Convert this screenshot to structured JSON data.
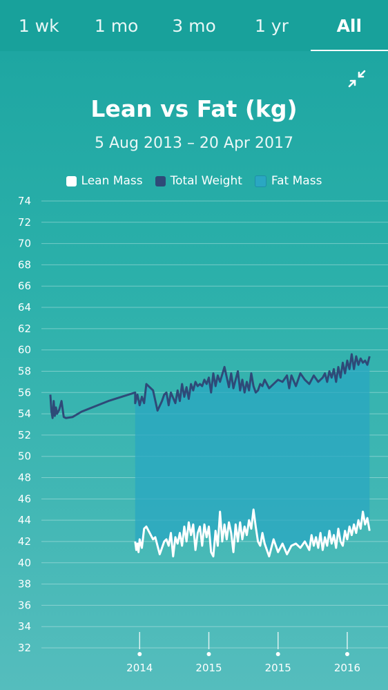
{
  "tabs": [
    {
      "label": "1 wk",
      "active": false
    },
    {
      "label": "1 mo",
      "active": false
    },
    {
      "label": "3 mo",
      "active": false
    },
    {
      "label": "1 yr",
      "active": false
    },
    {
      "label": "All",
      "active": true
    }
  ],
  "icons": {
    "collapse": "collapse-arrows-icon"
  },
  "chart_data": {
    "type": "line",
    "title": "Lean vs Fat (kg)",
    "subtitle": "5 Aug 2013 – 20 Apr 2017",
    "legend": [
      {
        "name": "Lean Mass",
        "color": "#ffffff"
      },
      {
        "name": "Total Weight",
        "color": "#2e4a78"
      },
      {
        "name": "Fat Mass",
        "color": "#2aa7c2"
      }
    ],
    "legend_position": "top-center",
    "grid": true,
    "ylim": [
      32,
      74
    ],
    "yticks": [
      74,
      72,
      70,
      68,
      66,
      64,
      62,
      60,
      58,
      56,
      54,
      52,
      50,
      48,
      46,
      44,
      42,
      40,
      38,
      36,
      34,
      32
    ],
    "x_ticks": [
      {
        "label": "2014",
        "pos": 0.14
      },
      {
        "label": "2015",
        "pos": 0.45
      },
      {
        "label": "2015",
        "pos": 0.76
      },
      {
        "label": "2016",
        "pos": 1.07
      }
    ],
    "xlim": [
      -0.3,
      1.2
    ],
    "series": [
      {
        "name": "Total Weight",
        "color": "#2e4a78",
        "x": [
          -0.26,
          -0.255,
          -0.25,
          -0.245,
          -0.24,
          -0.235,
          -0.23,
          -0.22,
          -0.21,
          -0.2,
          -0.19,
          -0.16,
          -0.12,
          0.0,
          0.12,
          0.12,
          0.13,
          0.14,
          0.15,
          0.16,
          0.17,
          0.18,
          0.19,
          0.2,
          0.22,
          0.24,
          0.25,
          0.26,
          0.27,
          0.28,
          0.3,
          0.31,
          0.32,
          0.33,
          0.34,
          0.35,
          0.36,
          0.37,
          0.38,
          0.39,
          0.4,
          0.41,
          0.42,
          0.43,
          0.44,
          0.45,
          0.46,
          0.47,
          0.48,
          0.49,
          0.5,
          0.52,
          0.54,
          0.55,
          0.56,
          0.57,
          0.58,
          0.59,
          0.6,
          0.61,
          0.62,
          0.63,
          0.64,
          0.65,
          0.66,
          0.67,
          0.68,
          0.69,
          0.7,
          0.72,
          0.74,
          0.76,
          0.78,
          0.8,
          0.81,
          0.82,
          0.84,
          0.86,
          0.88,
          0.9,
          0.92,
          0.94,
          0.96,
          0.97,
          0.98,
          0.99,
          1.0,
          1.01,
          1.02,
          1.03,
          1.04,
          1.05,
          1.06,
          1.07,
          1.08,
          1.09,
          1.1,
          1.11,
          1.12,
          1.13,
          1.14,
          1.15,
          1.16,
          1.17
        ],
        "values": [
          55.8,
          54.2,
          53.6,
          55.2,
          53.8,
          54.6,
          54.0,
          54.4,
          55.2,
          53.7,
          53.6,
          53.7,
          54.2,
          55.2,
          56.0,
          55.0,
          55.8,
          54.8,
          55.6,
          55.0,
          56.8,
          56.6,
          56.4,
          56.2,
          54.3,
          55.2,
          55.8,
          56.0,
          54.8,
          56.0,
          55.0,
          56.2,
          55.2,
          56.8,
          55.6,
          56.5,
          55.4,
          56.8,
          56.2,
          57.0,
          56.6,
          56.8,
          56.6,
          57.2,
          56.8,
          57.4,
          56.0,
          57.8,
          56.6,
          57.6,
          57.0,
          58.4,
          56.5,
          57.8,
          56.4,
          57.2,
          58.0,
          56.2,
          57.2,
          56.0,
          57.0,
          56.2,
          57.8,
          56.6,
          56.0,
          56.2,
          56.8,
          56.6,
          57.2,
          56.4,
          56.8,
          57.2,
          57.0,
          57.6,
          56.4,
          57.6,
          56.6,
          57.8,
          57.2,
          56.8,
          57.6,
          57.0,
          57.4,
          57.8,
          57.0,
          58.0,
          57.4,
          58.2,
          57.0,
          58.4,
          57.4,
          58.8,
          57.8,
          59.0,
          58.2,
          59.6,
          58.2,
          59.4,
          58.6,
          59.2,
          58.8,
          59.0,
          58.6,
          59.4
        ],
        "label_text": ""
      },
      {
        "name": "Lean Mass",
        "color": "#ffffff",
        "x": [
          0.12,
          0.125,
          0.13,
          0.135,
          0.14,
          0.15,
          0.16,
          0.17,
          0.18,
          0.19,
          0.2,
          0.21,
          0.22,
          0.23,
          0.24,
          0.25,
          0.26,
          0.27,
          0.28,
          0.29,
          0.3,
          0.31,
          0.32,
          0.33,
          0.34,
          0.35,
          0.36,
          0.37,
          0.38,
          0.39,
          0.4,
          0.41,
          0.42,
          0.43,
          0.44,
          0.45,
          0.46,
          0.47,
          0.48,
          0.49,
          0.5,
          0.51,
          0.52,
          0.53,
          0.54,
          0.55,
          0.56,
          0.57,
          0.58,
          0.59,
          0.6,
          0.61,
          0.62,
          0.63,
          0.64,
          0.65,
          0.66,
          0.67,
          0.68,
          0.69,
          0.7,
          0.72,
          0.74,
          0.76,
          0.78,
          0.8,
          0.82,
          0.84,
          0.86,
          0.88,
          0.9,
          0.91,
          0.92,
          0.93,
          0.94,
          0.95,
          0.96,
          0.97,
          0.98,
          0.99,
          1.0,
          1.01,
          1.02,
          1.03,
          1.04,
          1.05,
          1.06,
          1.07,
          1.08,
          1.09,
          1.1,
          1.11,
          1.12,
          1.13,
          1.14,
          1.15,
          1.16,
          1.17
        ],
        "values": [
          42.0,
          41.2,
          41.8,
          41.0,
          42.2,
          41.4,
          43.2,
          43.4,
          43.0,
          42.6,
          42.2,
          42.4,
          41.6,
          40.8,
          41.4,
          42.0,
          42.2,
          41.6,
          42.8,
          40.6,
          42.4,
          41.8,
          42.8,
          41.6,
          43.4,
          42.0,
          43.8,
          42.6,
          43.6,
          41.2,
          42.8,
          43.4,
          41.6,
          43.6,
          42.4,
          43.4,
          41.0,
          40.6,
          43.0,
          41.6,
          44.8,
          42.0,
          43.6,
          42.2,
          43.8,
          42.8,
          41.0,
          43.6,
          42.0,
          43.8,
          42.2,
          43.4,
          42.6,
          44.0,
          43.2,
          45.0,
          43.4,
          42.0,
          41.6,
          42.8,
          41.8,
          40.6,
          42.2,
          41.0,
          41.8,
          40.8,
          41.6,
          41.8,
          41.4,
          42.0,
          41.2,
          42.6,
          41.6,
          42.4,
          41.4,
          42.8,
          41.2,
          42.4,
          41.6,
          43.0,
          41.8,
          42.6,
          41.4,
          43.2,
          42.0,
          41.6,
          43.0,
          42.2,
          43.4,
          42.6,
          43.6,
          42.8,
          44.0,
          43.2,
          44.8,
          43.6,
          44.2,
          43.0
        ],
        "label_text": ""
      }
    ],
    "fat_area": {
      "name": "Fat Mass",
      "color": "#2aa7c2"
    }
  }
}
